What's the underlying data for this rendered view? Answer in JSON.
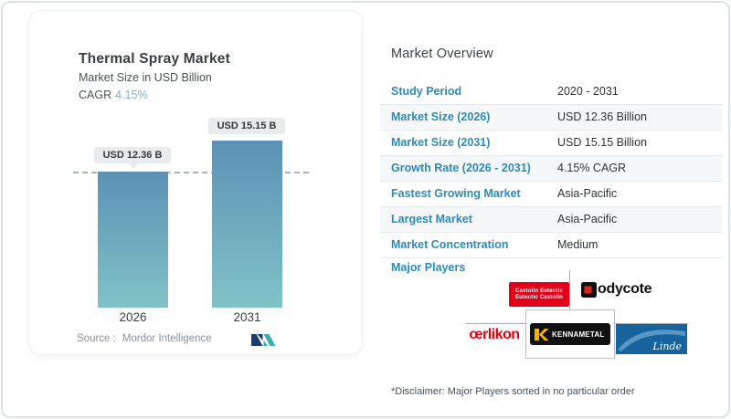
{
  "chart_card": {
    "title": "Thermal Spray Market",
    "subtitle": "Market Size in USD Billion",
    "cagr_label": "CAGR",
    "cagr_value": "4.15%",
    "source_label": "Source :",
    "source_value": "Mordor Intelligence"
  },
  "chart_data": {
    "type": "bar",
    "categories": [
      "2026",
      "2031"
    ],
    "values": [
      12.36,
      15.15
    ],
    "bar_labels": [
      "USD 12.36 B",
      "USD 15.15 B"
    ],
    "title": "Thermal Spray Market",
    "ylabel": "Market Size in USD Billion",
    "ylim": [
      0,
      15.15
    ],
    "legend": "none",
    "grid": "single dashed horizontal reference line at 12.36",
    "colors": {
      "bar_gradient_top": "#5d91b5",
      "bar_gradient_bottom": "#80c3c6",
      "label_pill_bg": "#e9ebec",
      "dashed_line": "#aab3ba"
    }
  },
  "overview": {
    "title": "Market Overview",
    "rows": [
      {
        "label": "Study Period",
        "value": "2020 - 2031"
      },
      {
        "label": "Market Size (2026)",
        "value": "USD 12.36 Billion"
      },
      {
        "label": "Market Size (2031)",
        "value": "USD 15.15 Billion"
      },
      {
        "label": "Growth Rate (2026 - 2031)",
        "value": "4.15% CAGR"
      },
      {
        "label": "Fastest Growing Market",
        "value": "Asia-Pacific"
      },
      {
        "label": "Largest Market",
        "value": "Asia-Pacific"
      },
      {
        "label": "Market Concentration",
        "value": "Medium"
      }
    ],
    "major_players_label": "Major Players",
    "major_players": [
      "Castolin Eutectic",
      "Bodycote",
      "œrlikon",
      "Kennametal",
      "Linde"
    ],
    "disclaimer": "*Disclaimer: Major Players sorted in no particular order",
    "accent_blue": "#2b8bb9"
  },
  "logos": {
    "castolin_line1": "Castolin Eutectic",
    "castolin_line2": "Eutectic Castolin",
    "bodycote_text": "odycote",
    "oerlikon_text": "œrlikon",
    "kennametal_text": "KENNAMETAL",
    "linde_text": "Linde"
  }
}
